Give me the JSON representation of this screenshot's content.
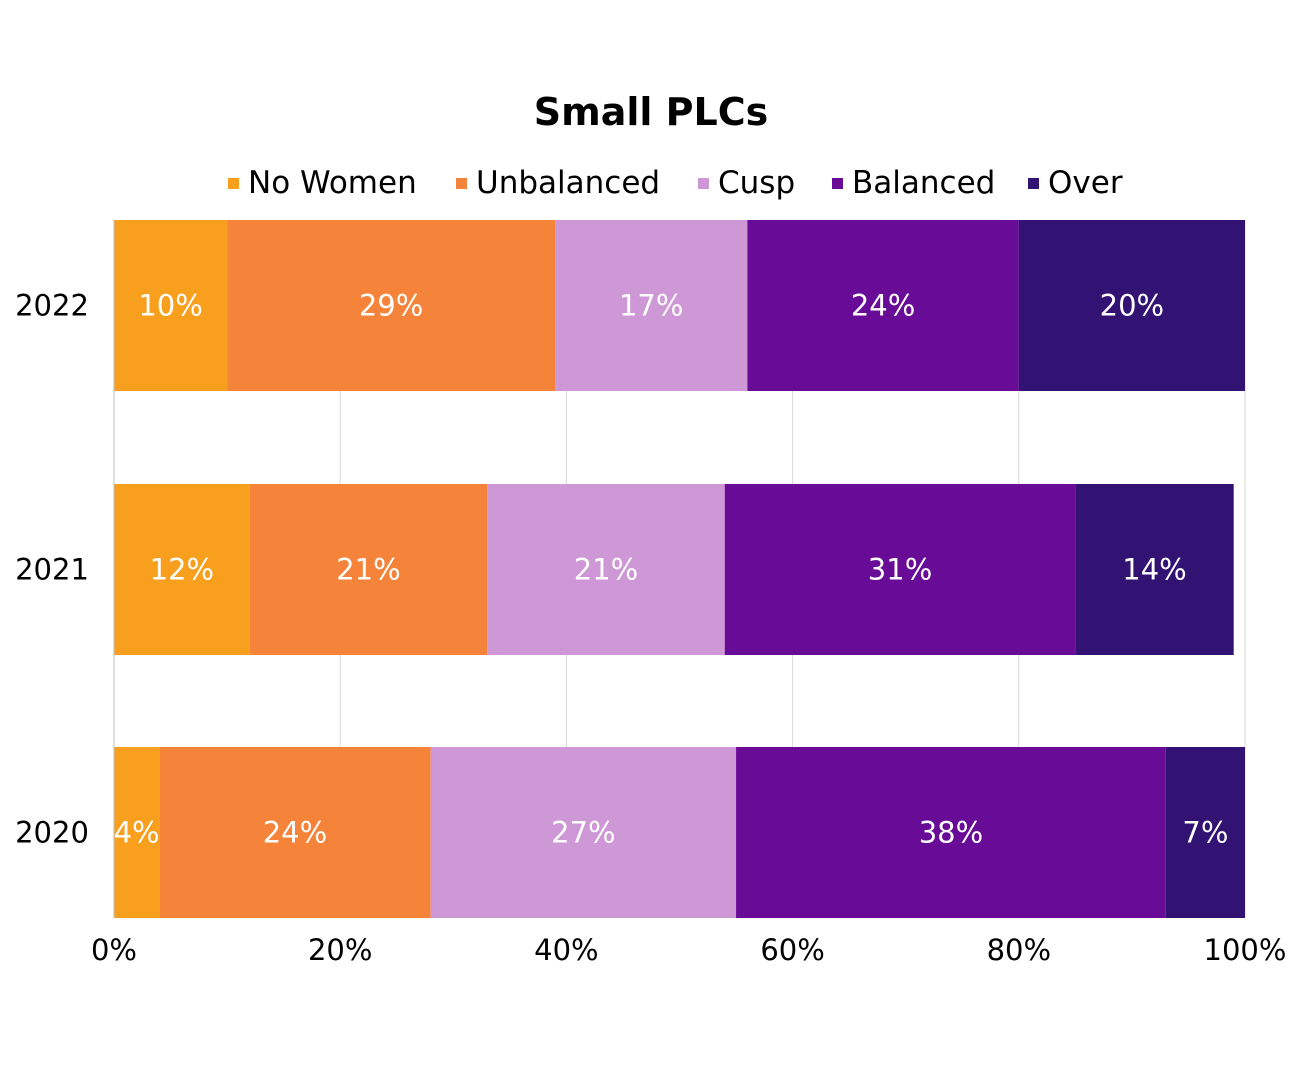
{
  "chart_data": {
    "type": "bar",
    "orientation": "horizontal",
    "stacked": true,
    "title": "Small PLCs",
    "categories": [
      "2022",
      "2021",
      "2020"
    ],
    "series": [
      {
        "name": "No Women",
        "color": "#F89F1E",
        "values": [
          10,
          12,
          4
        ]
      },
      {
        "name": "Unbalanced",
        "color": "#F5843A",
        "values": [
          29,
          21,
          24
        ]
      },
      {
        "name": "Cusp",
        "color": "#CE97D6",
        "values": [
          17,
          21,
          27
        ]
      },
      {
        "name": "Balanced",
        "color": "#680C97",
        "values": [
          24,
          31,
          38
        ]
      },
      {
        "name": "Over",
        "color": "#321273",
        "values": [
          20,
          14,
          7
        ]
      }
    ],
    "xlim": [
      0,
      100
    ],
    "xticks": [
      "0%",
      "20%",
      "40%",
      "60%",
      "80%",
      "100%"
    ],
    "xlabel": "",
    "ylabel": "",
    "grid": true,
    "legend_position": "top"
  }
}
